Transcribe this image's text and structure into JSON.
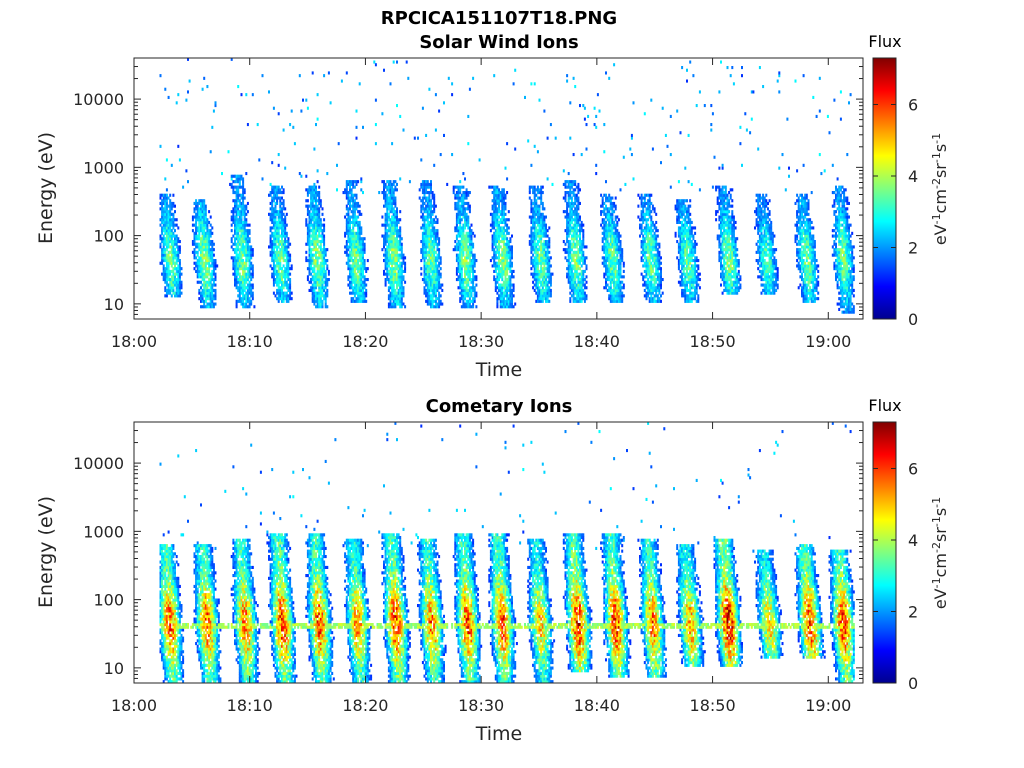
{
  "figure_title": "RPCICA151107T18.PNG",
  "chart_data": [
    {
      "type": "heatmap",
      "title": "Solar Wind Ions",
      "xlabel": "Time",
      "ylabel": "Energy (eV)",
      "x_ticks": [
        "18:00",
        "18:10",
        "18:20",
        "18:30",
        "18:40",
        "18:50",
        "19:00"
      ],
      "x_range": [
        "18:00",
        "19:03"
      ],
      "y_scale": "log",
      "y_ticks": [
        "10",
        "100",
        "1000",
        "10000"
      ],
      "y_range": [
        6,
        40000
      ],
      "colorbar": {
        "title": "Flux",
        "label": "eV-1cm-2sr-1s-1",
        "ticks": [
          "0",
          "2",
          "4",
          "6"
        ],
        "range": [
          0,
          7.3
        ],
        "colormap": "jet"
      },
      "data_extent_min": [
        2.2,
        62.2
      ],
      "bursts": [
        {
          "t": 3.3,
          "lo": 18,
          "hi": 300,
          "peak": 3.6
        },
        {
          "t": 6.3,
          "lo": 12,
          "hi": 250,
          "peak": 3.8
        },
        {
          "t": 9.5,
          "lo": 12,
          "hi": 600,
          "peak": 3.7
        },
        {
          "t": 12.8,
          "lo": 15,
          "hi": 400,
          "peak": 3.6
        },
        {
          "t": 16.0,
          "lo": 12,
          "hi": 400,
          "peak": 3.8
        },
        {
          "t": 19.3,
          "lo": 15,
          "hi": 500,
          "peak": 3.6
        },
        {
          "t": 22.6,
          "lo": 12,
          "hi": 500,
          "peak": 3.8
        },
        {
          "t": 25.8,
          "lo": 12,
          "hi": 500,
          "peak": 3.6
        },
        {
          "t": 28.8,
          "lo": 12,
          "hi": 400,
          "peak": 3.7
        },
        {
          "t": 32.0,
          "lo": 12,
          "hi": 400,
          "peak": 3.8
        },
        {
          "t": 35.3,
          "lo": 15,
          "hi": 400,
          "peak": 3.6
        },
        {
          "t": 38.3,
          "lo": 15,
          "hi": 500,
          "peak": 3.7
        },
        {
          "t": 41.5,
          "lo": 15,
          "hi": 300,
          "peak": 3.6
        },
        {
          "t": 44.8,
          "lo": 15,
          "hi": 300,
          "peak": 3.5
        },
        {
          "t": 48.0,
          "lo": 15,
          "hi": 250,
          "peak": 3.5
        },
        {
          "t": 51.5,
          "lo": 20,
          "hi": 400,
          "peak": 3.7
        },
        {
          "t": 54.8,
          "lo": 20,
          "hi": 300,
          "peak": 3.3
        },
        {
          "t": 58.3,
          "lo": 15,
          "hi": 300,
          "peak": 3.6
        },
        {
          "t": 61.5,
          "lo": 10,
          "hi": 400,
          "peak": 3.6
        }
      ],
      "band": null
    },
    {
      "type": "heatmap",
      "title": "Cometary Ions",
      "xlabel": "Time",
      "ylabel": "Energy (eV)",
      "x_ticks": [
        "18:00",
        "18:10",
        "18:20",
        "18:30",
        "18:40",
        "18:50",
        "19:00"
      ],
      "x_range": [
        "18:00",
        "19:03"
      ],
      "y_scale": "log",
      "y_ticks": [
        "10",
        "100",
        "1000",
        "10000"
      ],
      "y_range": [
        6,
        40000
      ],
      "colorbar": {
        "title": "Flux",
        "label": "eV-1cm-2sr-1s-1",
        "ticks": [
          "0",
          "2",
          "4",
          "6"
        ],
        "range": [
          0,
          7.3
        ],
        "colormap": "jet"
      },
      "data_extent_min": [
        2.2,
        62.2
      ],
      "bursts": [
        {
          "t": 3.3,
          "lo": 8,
          "hi": 500,
          "peak": 5.8
        },
        {
          "t": 6.5,
          "lo": 8,
          "hi": 500,
          "peak": 5.7
        },
        {
          "t": 9.8,
          "lo": 8,
          "hi": 600,
          "peak": 5.6
        },
        {
          "t": 13.0,
          "lo": 8,
          "hi": 700,
          "peak": 6.1
        },
        {
          "t": 16.2,
          "lo": 8,
          "hi": 700,
          "peak": 5.9
        },
        {
          "t": 19.5,
          "lo": 8,
          "hi": 600,
          "peak": 5.4
        },
        {
          "t": 22.8,
          "lo": 8,
          "hi": 700,
          "peak": 6.1
        },
        {
          "t": 25.9,
          "lo": 8,
          "hi": 600,
          "peak": 5.6
        },
        {
          "t": 29.0,
          "lo": 8,
          "hi": 700,
          "peak": 5.9
        },
        {
          "t": 32.0,
          "lo": 8,
          "hi": 700,
          "peak": 5.8
        },
        {
          "t": 35.3,
          "lo": 8,
          "hi": 600,
          "peak": 5.0
        },
        {
          "t": 38.5,
          "lo": 12,
          "hi": 700,
          "peak": 6.3
        },
        {
          "t": 41.8,
          "lo": 10,
          "hi": 700,
          "peak": 6.1
        },
        {
          "t": 45.0,
          "lo": 10,
          "hi": 600,
          "peak": 5.6
        },
        {
          "t": 48.2,
          "lo": 15,
          "hi": 500,
          "peak": 5.3
        },
        {
          "t": 51.5,
          "lo": 15,
          "hi": 600,
          "peak": 6.6
        },
        {
          "t": 55.0,
          "lo": 20,
          "hi": 400,
          "peak": 4.9
        },
        {
          "t": 58.5,
          "lo": 20,
          "hi": 500,
          "peak": 6.0
        },
        {
          "t": 61.5,
          "lo": 8,
          "hi": 400,
          "peak": 6.0
        }
      ],
      "band": {
        "energy": 42,
        "level": 3.9
      }
    }
  ]
}
